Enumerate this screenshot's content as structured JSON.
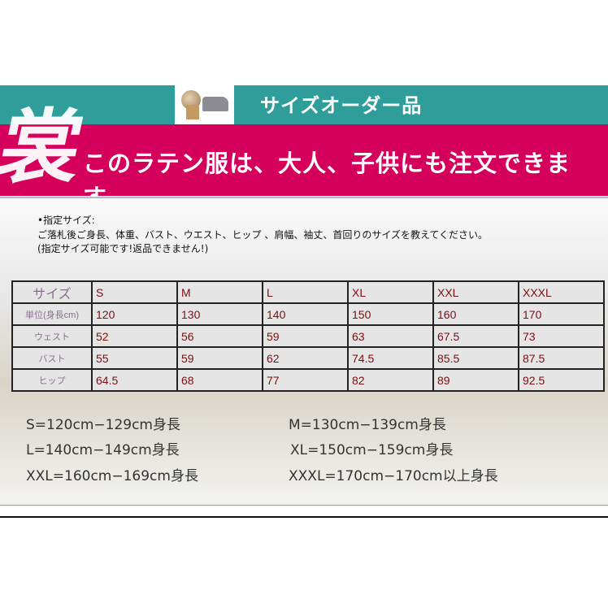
{
  "banner": {
    "title": "サイズオーダー品",
    "subtitle": "このラテン服は、大人、子供にも注文できます。",
    "calligraphy": "裳",
    "colors": {
      "teal": "#2f9e9b",
      "magenta": "#d5005b"
    }
  },
  "notes": [
    "•指定サイズ:",
    "ご落札後ご身長、体重、バスト、ウエスト、ヒップ 、肩幅、袖丈、首回りのサイズを教えてください。",
    "(指定サイズ可能です!返品できません!)"
  ],
  "table": {
    "header": [
      "サイズ",
      "S",
      "M",
      "L",
      "XL",
      "XXL",
      "XXXL"
    ],
    "rows": [
      {
        "label": "単位(身長cm)",
        "values": [
          "120",
          "130",
          "140",
          "150",
          "160",
          "170"
        ]
      },
      {
        "label": "ウェスト",
        "values": [
          "52",
          "56",
          "59",
          "63",
          "67.5",
          "73"
        ]
      },
      {
        "label": "バスト",
        "values": [
          "55",
          "59",
          "62",
          "74.5",
          "85.5",
          "87.5"
        ]
      },
      {
        "label": "ヒップ",
        "values": [
          "64.5",
          "68",
          "77",
          "82",
          "89",
          "92.5"
        ]
      }
    ]
  },
  "size_guide": [
    "S=120cm−129cm身長",
    "M=130cm−139cm身長",
    "L=140cm−149cm身長",
    "XL=150cm−159cm身長",
    "XXL=160cm−169cm身長",
    "XXXL=170cm−170cm以上身長"
  ]
}
